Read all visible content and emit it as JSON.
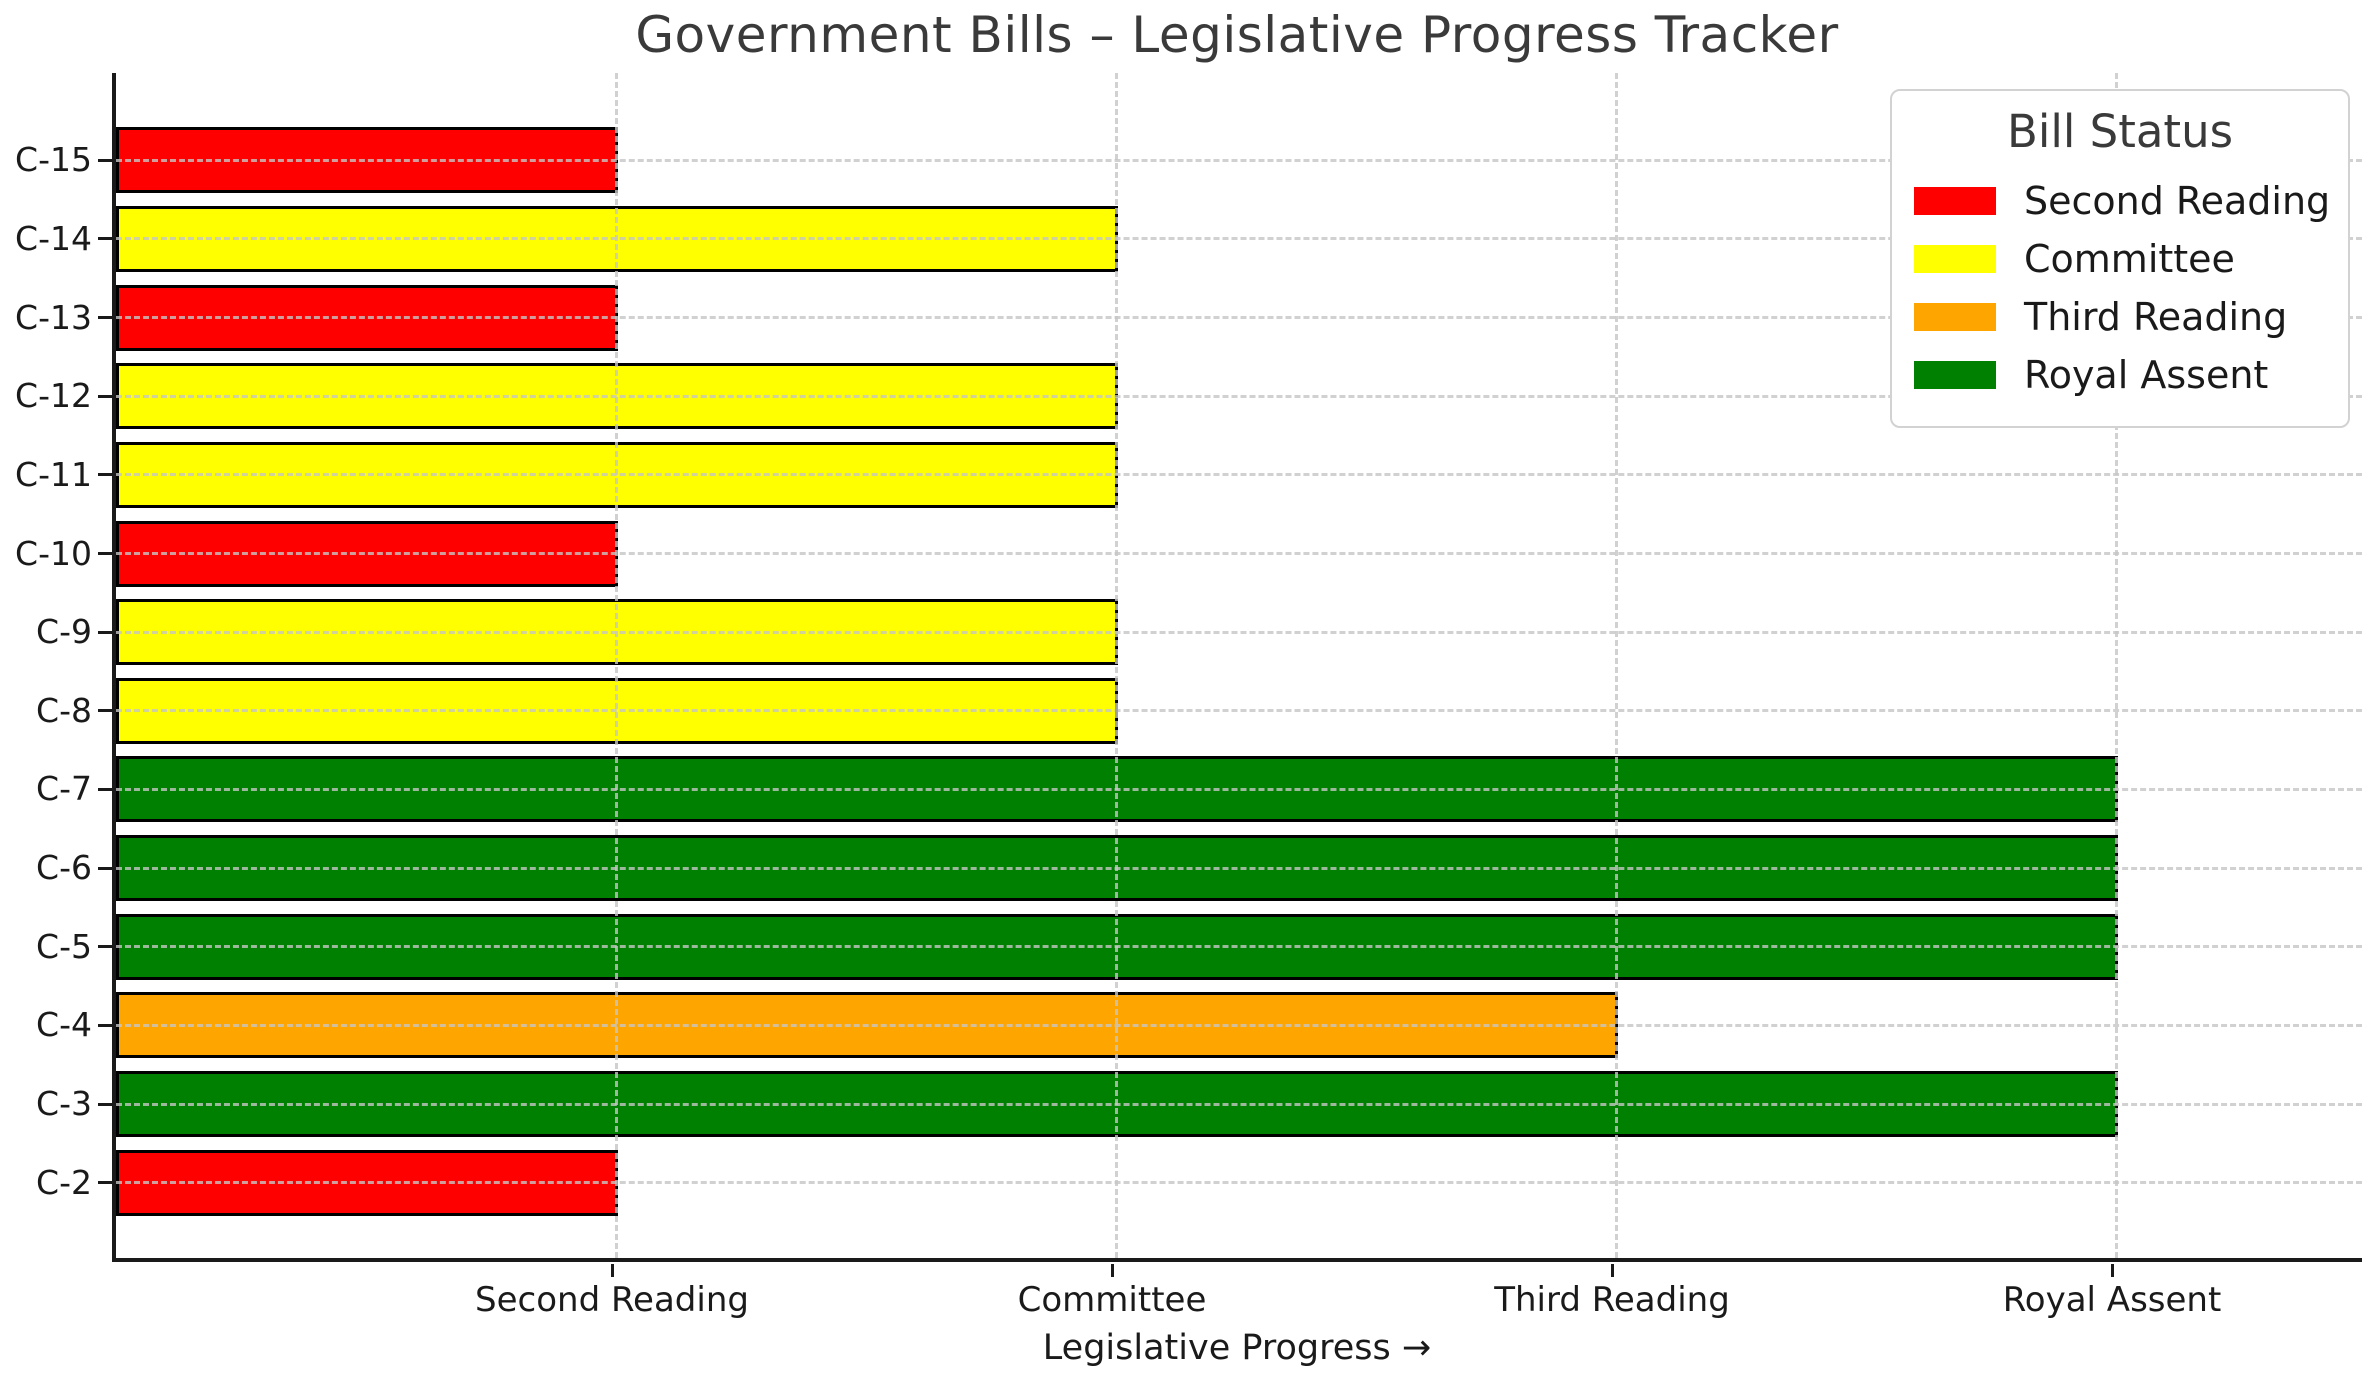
{
  "title": "Government Bills – Legislative Progress Tracker",
  "xlabel": "Legislative Progress →",
  "legend": {
    "title": "Bill Status",
    "entries": [
      {
        "label": "Second Reading",
        "color": "#ff0000"
      },
      {
        "label": "Committee",
        "color": "#ffff00"
      },
      {
        "label": "Third Reading",
        "color": "#ffa500"
      },
      {
        "label": "Royal Assent",
        "color": "#008000"
      }
    ]
  },
  "status_colors": {
    "Second Reading": "#ff0000",
    "Committee": "#ffff00",
    "Third Reading": "#ffa500",
    "Royal Assent": "#008000"
  },
  "chart_data": {
    "type": "bar",
    "orientation": "horizontal",
    "title": "Government Bills – Legislative Progress Tracker",
    "xlabel": "Legislative Progress →",
    "ylabel": "",
    "grid": true,
    "legend_position": "upper right",
    "xlim": [
      0,
      4.5
    ],
    "stage_scale": [
      "Second Reading",
      "Committee",
      "Third Reading",
      "Royal Assent"
    ],
    "xticks": [
      {
        "value": 1,
        "label": "Second Reading"
      },
      {
        "value": 2,
        "label": "Committee"
      },
      {
        "value": 3,
        "label": "Third Reading"
      },
      {
        "value": 4,
        "label": "Royal Assent"
      }
    ],
    "categories": [
      "C-15",
      "C-14",
      "C-13",
      "C-12",
      "C-11",
      "C-10",
      "C-9",
      "C-8",
      "C-7",
      "C-6",
      "C-5",
      "C-4",
      "C-3",
      "C-2"
    ],
    "values": [
      1,
      2,
      1,
      2,
      2,
      1,
      2,
      2,
      4,
      4,
      4,
      3,
      4,
      1
    ],
    "bars": [
      {
        "bill": "C-15",
        "status": "Second Reading",
        "value": 1
      },
      {
        "bill": "C-14",
        "status": "Committee",
        "value": 2
      },
      {
        "bill": "C-13",
        "status": "Second Reading",
        "value": 1
      },
      {
        "bill": "C-12",
        "status": "Committee",
        "value": 2
      },
      {
        "bill": "C-11",
        "status": "Committee",
        "value": 2
      },
      {
        "bill": "C-10",
        "status": "Second Reading",
        "value": 1
      },
      {
        "bill": "C-9",
        "status": "Committee",
        "value": 2
      },
      {
        "bill": "C-8",
        "status": "Committee",
        "value": 2
      },
      {
        "bill": "C-7",
        "status": "Royal Assent",
        "value": 4
      },
      {
        "bill": "C-6",
        "status": "Royal Assent",
        "value": 4
      },
      {
        "bill": "C-5",
        "status": "Royal Assent",
        "value": 4
      },
      {
        "bill": "C-4",
        "status": "Third Reading",
        "value": 3
      },
      {
        "bill": "C-3",
        "status": "Royal Assent",
        "value": 4
      },
      {
        "bill": "C-2",
        "status": "Second Reading",
        "value": 1
      }
    ]
  }
}
